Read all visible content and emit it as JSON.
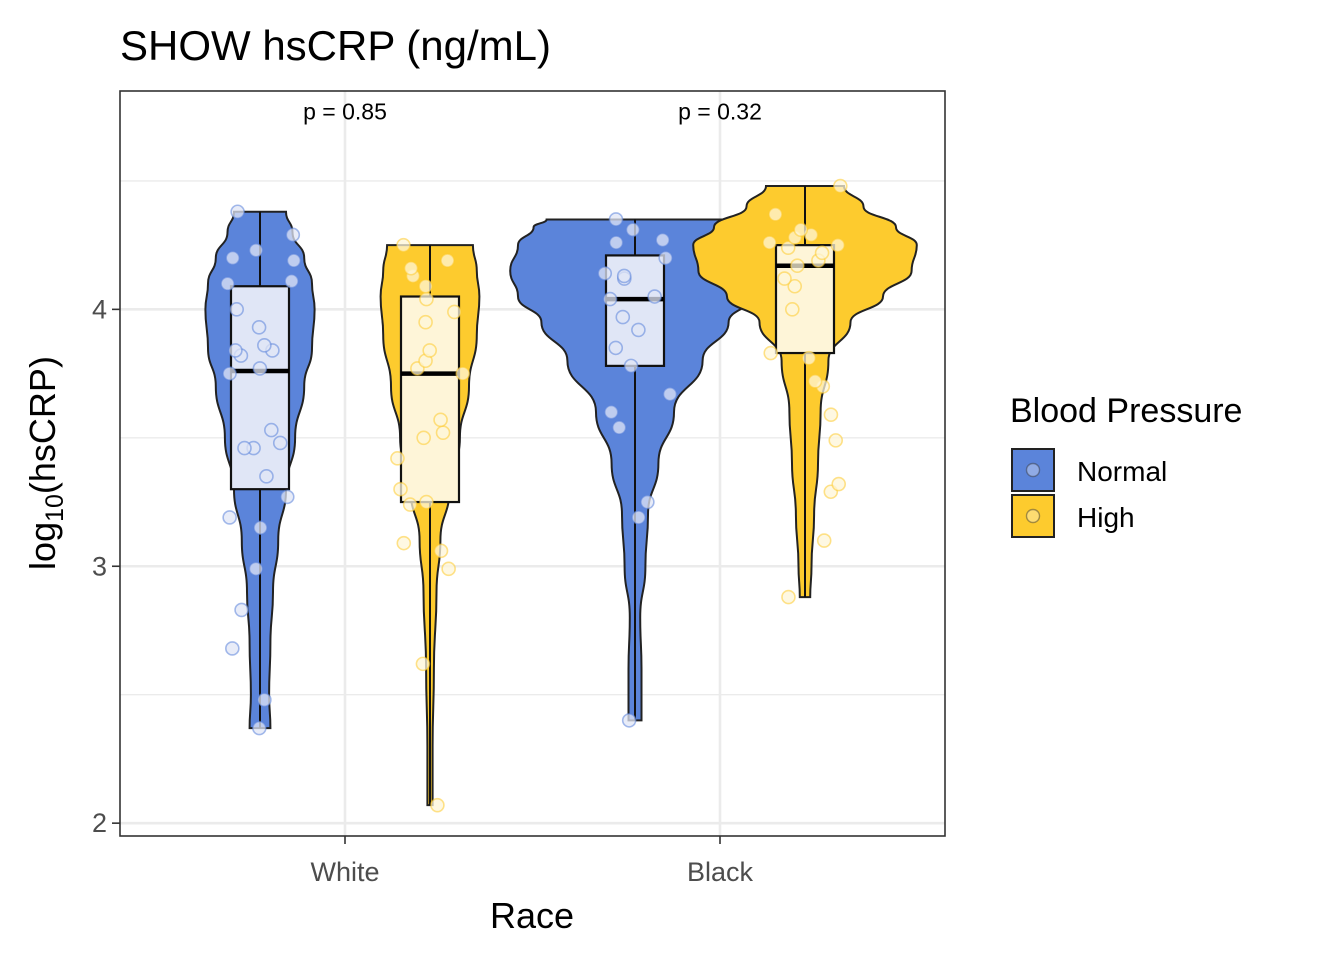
{
  "chart_data": {
    "type": "violin-box",
    "title": "SHOW hsCRP (ng/mL)",
    "xlabel": "Race",
    "ylabel": {
      "prefix": "log",
      "subscript": "10",
      "suffix": "(hsCRP)"
    },
    "categories": [
      "White",
      "Black"
    ],
    "ylim": [
      1.95,
      4.85
    ],
    "yticks": [
      2,
      3,
      4
    ],
    "ytick_labels": [
      "2",
      "3",
      "4"
    ],
    "minor_gridlines": [
      2.5,
      3.5,
      4.5
    ],
    "grid": true,
    "legend": {
      "title": "Blood Pressure",
      "position": "right",
      "items": [
        {
          "label": "Normal",
          "color": "#5B84DA"
        },
        {
          "label": "High",
          "color": "#FDCB2E"
        }
      ]
    },
    "annotations": [
      {
        "category": "White",
        "text": "p = 0.85",
        "y": 4.74
      },
      {
        "category": "Black",
        "text": "p = 0.32",
        "y": 4.74
      }
    ],
    "series": [
      {
        "name": "Normal",
        "color": "#5B84DA",
        "box_fill": "#E0E6F6",
        "groups": [
          {
            "category": "White",
            "min": 2.37,
            "q1": 3.3,
            "median": 3.76,
            "q3": 4.09,
            "max": 4.38,
            "density": [
              [
                2.37,
                0.08
              ],
              [
                2.5,
                0.07
              ],
              [
                2.7,
                0.08
              ],
              [
                2.9,
                0.1
              ],
              [
                3.1,
                0.14
              ],
              [
                3.3,
                0.2
              ],
              [
                3.5,
                0.27
              ],
              [
                3.7,
                0.34
              ],
              [
                3.85,
                0.4
              ],
              [
                4.0,
                0.42
              ],
              [
                4.1,
                0.4
              ],
              [
                4.2,
                0.34
              ],
              [
                4.3,
                0.25
              ],
              [
                4.38,
                0.2
              ]
            ],
            "points": [
              2.37,
              2.48,
              2.68,
              2.83,
              2.99,
              3.15,
              3.19,
              3.27,
              3.35,
              3.46,
              3.46,
              3.48,
              3.53,
              3.75,
              3.77,
              3.82,
              3.84,
              3.84,
              3.86,
              3.93,
              4.0,
              4.1,
              4.11,
              4.19,
              4.2,
              4.23,
              4.29,
              4.38
            ]
          },
          {
            "category": "Black",
            "min": 2.4,
            "q1": 3.78,
            "median": 4.04,
            "q3": 4.21,
            "max": 4.35,
            "density": [
              [
                2.4,
                0.05
              ],
              [
                2.6,
                0.05
              ],
              [
                2.8,
                0.04
              ],
              [
                3.0,
                0.08
              ],
              [
                3.2,
                0.1
              ],
              [
                3.4,
                0.18
              ],
              [
                3.6,
                0.3
              ],
              [
                3.8,
                0.52
              ],
              [
                3.95,
                0.72
              ],
              [
                4.05,
                0.9
              ],
              [
                4.15,
                0.96
              ],
              [
                4.25,
                0.9
              ],
              [
                4.32,
                0.78
              ],
              [
                4.35,
                0.68
              ]
            ],
            "points": [
              2.4,
              3.19,
              3.25,
              3.54,
              3.6,
              3.67,
              3.78,
              3.85,
              3.92,
              3.97,
              4.04,
              4.05,
              4.12,
              4.13,
              4.14,
              4.2,
              4.26,
              4.27,
              4.31,
              4.35
            ]
          }
        ]
      },
      {
        "name": "High",
        "color": "#FDCB2E",
        "box_fill": "#FEF5D8",
        "groups": [
          {
            "category": "White",
            "min": 2.07,
            "q1": 3.25,
            "median": 3.75,
            "q3": 4.05,
            "max": 4.25,
            "density": [
              [
                2.07,
                0.02
              ],
              [
                2.3,
                0.02
              ],
              [
                2.6,
                0.03
              ],
              [
                2.9,
                0.05
              ],
              [
                3.1,
                0.08
              ],
              [
                3.3,
                0.15
              ],
              [
                3.5,
                0.23
              ],
              [
                3.7,
                0.3
              ],
              [
                3.9,
                0.36
              ],
              [
                4.05,
                0.38
              ],
              [
                4.15,
                0.36
              ],
              [
                4.25,
                0.33
              ]
            ],
            "points": [
              2.07,
              2.62,
              2.99,
              3.06,
              3.09,
              3.24,
              3.25,
              3.3,
              3.42,
              3.5,
              3.52,
              3.57,
              3.75,
              3.77,
              3.8,
              3.84,
              3.95,
              3.99,
              4.04,
              4.09,
              4.13,
              4.16,
              4.19,
              4.25
            ]
          },
          {
            "category": "Black",
            "min": 2.88,
            "q1": 3.83,
            "median": 4.17,
            "q3": 4.25,
            "max": 4.48,
            "density": [
              [
                2.88,
                0.04
              ],
              [
                3.0,
                0.05
              ],
              [
                3.2,
                0.07
              ],
              [
                3.4,
                0.1
              ],
              [
                3.6,
                0.12
              ],
              [
                3.8,
                0.18
              ],
              [
                3.95,
                0.35
              ],
              [
                4.05,
                0.6
              ],
              [
                4.15,
                0.82
              ],
              [
                4.25,
                0.86
              ],
              [
                4.32,
                0.7
              ],
              [
                4.4,
                0.45
              ],
              [
                4.48,
                0.3
              ]
            ],
            "points": [
              2.88,
              3.1,
              3.29,
              3.32,
              3.49,
              3.59,
              3.7,
              3.72,
              3.81,
              3.83,
              4.0,
              4.09,
              4.12,
              4.17,
              4.19,
              4.22,
              4.24,
              4.25,
              4.26,
              4.28,
              4.29,
              4.31,
              4.37,
              4.48
            ]
          }
        ]
      }
    ]
  }
}
